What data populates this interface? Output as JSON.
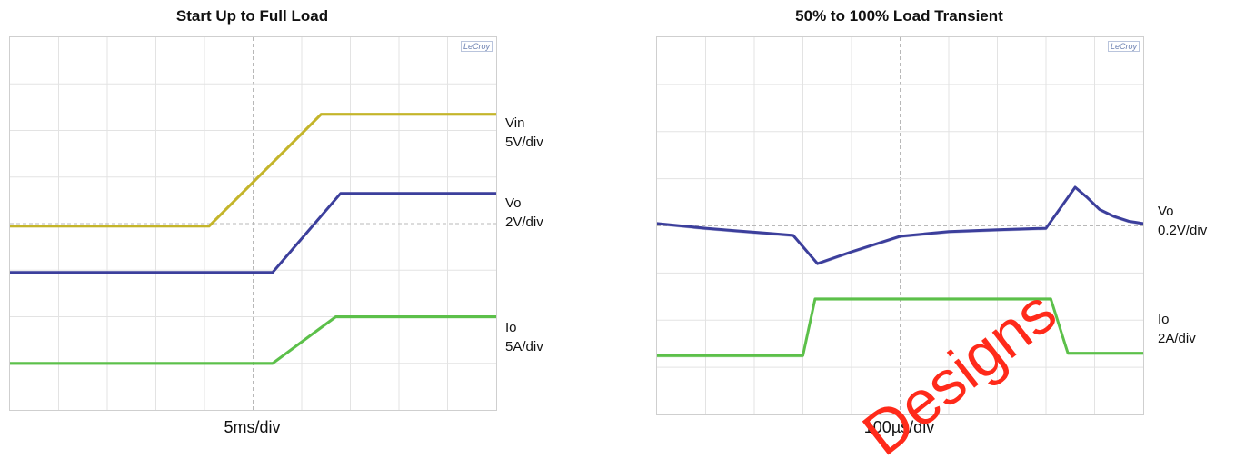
{
  "chart_data": [
    {
      "type": "line",
      "title": "Start Up to Full Load",
      "timebase": "5ms/div",
      "brand": "LeCroy",
      "grid": true,
      "divisions": {
        "x": 10,
        "y": 8
      },
      "xlim": [
        0,
        10
      ],
      "ylim": [
        0,
        8
      ],
      "series": [
        {
          "name": "Vin",
          "scale": "5V/div",
          "color": "#c4b52a",
          "x": [
            0,
            4.1,
            6.4,
            10
          ],
          "y": [
            3.95,
            3.95,
            6.35,
            6.35
          ]
        },
        {
          "name": "Vo",
          "scale": "2V/div",
          "color": "#3c3f9c",
          "x": [
            0,
            5.4,
            6.8,
            10
          ],
          "y": [
            2.95,
            2.95,
            4.65,
            4.65
          ]
        },
        {
          "name": "Io",
          "scale": "5A/div",
          "color": "#5cc04a",
          "x": [
            0,
            5.4,
            6.7,
            10
          ],
          "y": [
            1.0,
            1.0,
            2.0,
            2.0
          ]
        }
      ]
    },
    {
      "type": "line",
      "title": "50% to 100% Load Transient",
      "timebase": "100µs/div",
      "brand": "LeCroy",
      "grid": true,
      "divisions": {
        "x": 10,
        "y": 8
      },
      "xlim": [
        0,
        10
      ],
      "ylim": [
        0,
        8
      ],
      "series": [
        {
          "name": "Vo",
          "scale": "0.2V/div",
          "color": "#3c3f9c",
          "x": [
            0,
            0.5,
            1.0,
            1.6,
            2.2,
            2.8,
            3.3,
            4.0,
            5.0,
            6.0,
            7.0,
            8.0,
            8.6,
            8.85,
            9.1,
            9.4,
            9.7,
            10.0
          ],
          "y": [
            4.05,
            4.0,
            3.95,
            3.9,
            3.85,
            3.8,
            3.2,
            3.45,
            3.78,
            3.88,
            3.92,
            3.95,
            4.82,
            4.6,
            4.35,
            4.2,
            4.1,
            4.05
          ]
        },
        {
          "name": "Io",
          "scale": "2A/div",
          "color": "#5cc04a",
          "x": [
            0,
            3.0,
            3.25,
            8.1,
            8.45,
            10.0
          ],
          "y": [
            1.25,
            1.25,
            2.45,
            2.45,
            1.3,
            1.3
          ]
        }
      ]
    }
  ],
  "watermark": "Designs"
}
